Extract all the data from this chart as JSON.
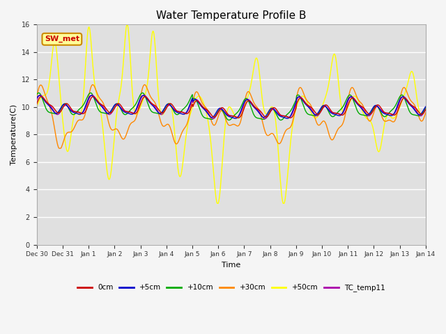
{
  "title": "Water Temperature Profile B",
  "xlabel": "Time",
  "ylabel": "Temperature(C)",
  "ylim": [
    0,
    16
  ],
  "yticks": [
    0,
    2,
    4,
    6,
    8,
    10,
    12,
    14,
    16
  ],
  "colors": {
    "0cm": "#cc0000",
    "+5cm": "#0000cc",
    "+10cm": "#00aa00",
    "+30cm": "#ff8800",
    "+50cm": "#ffff00",
    "TC_temp11": "#aa00aa"
  },
  "legend_labels": [
    "0cm",
    "+5cm",
    "+10cm",
    "+30cm",
    "+50cm",
    "TC_temp11"
  ],
  "annotation_text": "SW_met",
  "annotation_color": "#cc0000",
  "annotation_bg": "#ffff99",
  "bg_color": "#e0e0e0",
  "grid_color": "#ffffff",
  "line_width": 1.0,
  "fig_width": 6.4,
  "fig_height": 4.8,
  "dpi": 100
}
